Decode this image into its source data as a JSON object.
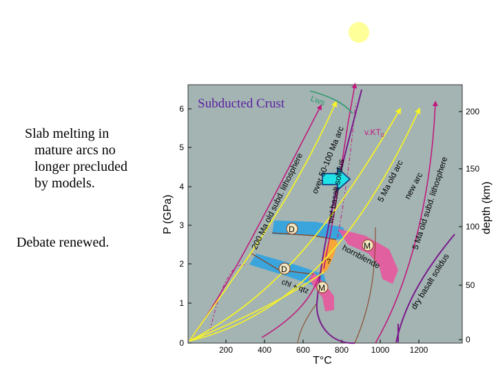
{
  "slide": {
    "text_lines": [
      "Slab melting in",
      "mature arcs no",
      "longer precluded",
      "by models."
    ],
    "text2": "Debate renewed."
  },
  "diagram": {
    "title": "Subducted Crust",
    "y_axis_label": "P (GPa)",
    "x_axis_label": "T°C",
    "right_axis_label": "depth (km)",
    "x_ticks": [
      "200",
      "400",
      "600",
      "800",
      "1000",
      "1200"
    ],
    "x_zero": "0",
    "y_ticks": [
      "0",
      "1",
      "2",
      "3",
      "4",
      "5",
      "6"
    ],
    "depth_ticks": [
      "0",
      "50",
      "100",
      "150",
      "200"
    ],
    "labels": {
      "lws": "Lws",
      "vkt": "v.KT",
      "vkt_sub": "0",
      "ma200": "200 Ma old subd. lithosphere",
      "over": "over 50-100 Ma arc",
      "wet": "wet basalt solidus",
      "ma5": "5 Ma old arc",
      "newarc": "new arc",
      "ma5sub": "5 Ma old subd. lithosphere",
      "dry": "dry basalt solidus",
      "hornblende": "hornblende",
      "chl": "chl + qtz",
      "d1": "D",
      "d2": "D",
      "m1": "M",
      "m2": "M",
      "q": "?"
    }
  }
}
